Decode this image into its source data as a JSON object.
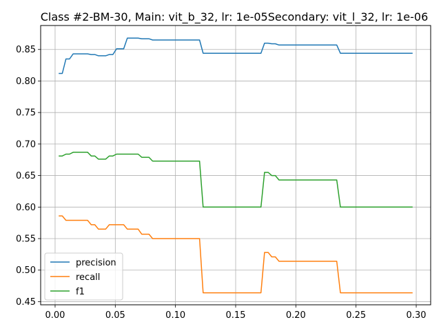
{
  "chart_data": {
    "type": "line",
    "title": "Class #2-BM-30, Main: vit_b_32, lr: 1e-05Secondary: vit_l_32, lr: 1e-06",
    "xlabel": "",
    "ylabel": "",
    "xlim": [
      -0.012,
      0.312
    ],
    "ylim": [
      0.445,
      0.888
    ],
    "xticks": [
      0.0,
      0.05,
      0.1,
      0.15,
      0.2,
      0.25,
      0.3
    ],
    "xtick_labels": [
      "0.00",
      "0.05",
      "0.10",
      "0.15",
      "0.20",
      "0.25",
      "0.30"
    ],
    "yticks": [
      0.45,
      0.5,
      0.55,
      0.6,
      0.65,
      0.7,
      0.75,
      0.8,
      0.85
    ],
    "ytick_labels": [
      "0.45",
      "0.50",
      "0.55",
      "0.60",
      "0.65",
      "0.70",
      "0.75",
      "0.80",
      "0.85"
    ],
    "grid": true,
    "legend_position": "lower-left",
    "series": [
      {
        "name": "precision",
        "color": "#1f77b4",
        "points": [
          [
            0.003,
            0.812
          ],
          [
            0.006,
            0.812
          ],
          [
            0.009,
            0.835
          ],
          [
            0.012,
            0.835
          ],
          [
            0.015,
            0.843
          ],
          [
            0.027,
            0.843
          ],
          [
            0.03,
            0.842
          ],
          [
            0.033,
            0.842
          ],
          [
            0.036,
            0.84
          ],
          [
            0.042,
            0.84
          ],
          [
            0.045,
            0.842
          ],
          [
            0.048,
            0.842
          ],
          [
            0.051,
            0.851
          ],
          [
            0.057,
            0.851
          ],
          [
            0.06,
            0.868
          ],
          [
            0.069,
            0.868
          ],
          [
            0.072,
            0.867
          ],
          [
            0.078,
            0.867
          ],
          [
            0.081,
            0.865
          ],
          [
            0.12,
            0.865
          ],
          [
            0.123,
            0.844
          ],
          [
            0.171,
            0.844
          ],
          [
            0.174,
            0.86
          ],
          [
            0.177,
            0.86
          ],
          [
            0.18,
            0.859
          ],
          [
            0.183,
            0.859
          ],
          [
            0.186,
            0.857
          ],
          [
            0.234,
            0.857
          ],
          [
            0.237,
            0.844
          ],
          [
            0.297,
            0.844
          ]
        ]
      },
      {
        "name": "recall",
        "color": "#ff7f0e",
        "points": [
          [
            0.003,
            0.586
          ],
          [
            0.006,
            0.586
          ],
          [
            0.009,
            0.579
          ],
          [
            0.027,
            0.579
          ],
          [
            0.03,
            0.572
          ],
          [
            0.033,
            0.572
          ],
          [
            0.036,
            0.565
          ],
          [
            0.042,
            0.565
          ],
          [
            0.045,
            0.572
          ],
          [
            0.057,
            0.572
          ],
          [
            0.06,
            0.565
          ],
          [
            0.069,
            0.565
          ],
          [
            0.072,
            0.557
          ],
          [
            0.078,
            0.557
          ],
          [
            0.081,
            0.55
          ],
          [
            0.12,
            0.55
          ],
          [
            0.123,
            0.464
          ],
          [
            0.171,
            0.464
          ],
          [
            0.174,
            0.528
          ],
          [
            0.177,
            0.528
          ],
          [
            0.18,
            0.521
          ],
          [
            0.183,
            0.521
          ],
          [
            0.186,
            0.514
          ],
          [
            0.234,
            0.514
          ],
          [
            0.237,
            0.464
          ],
          [
            0.297,
            0.464
          ]
        ]
      },
      {
        "name": "f1",
        "color": "#2ca02c",
        "points": [
          [
            0.003,
            0.681
          ],
          [
            0.006,
            0.681
          ],
          [
            0.009,
            0.684
          ],
          [
            0.012,
            0.684
          ],
          [
            0.015,
            0.687
          ],
          [
            0.027,
            0.687
          ],
          [
            0.03,
            0.681
          ],
          [
            0.033,
            0.681
          ],
          [
            0.036,
            0.676
          ],
          [
            0.042,
            0.676
          ],
          [
            0.045,
            0.681
          ],
          [
            0.048,
            0.681
          ],
          [
            0.051,
            0.684
          ],
          [
            0.069,
            0.684
          ],
          [
            0.072,
            0.679
          ],
          [
            0.078,
            0.679
          ],
          [
            0.081,
            0.673
          ],
          [
            0.12,
            0.673
          ],
          [
            0.123,
            0.6
          ],
          [
            0.171,
            0.6
          ],
          [
            0.174,
            0.655
          ],
          [
            0.177,
            0.655
          ],
          [
            0.18,
            0.65
          ],
          [
            0.183,
            0.65
          ],
          [
            0.186,
            0.643
          ],
          [
            0.234,
            0.643
          ],
          [
            0.237,
            0.6
          ],
          [
            0.297,
            0.6
          ]
        ]
      }
    ]
  }
}
